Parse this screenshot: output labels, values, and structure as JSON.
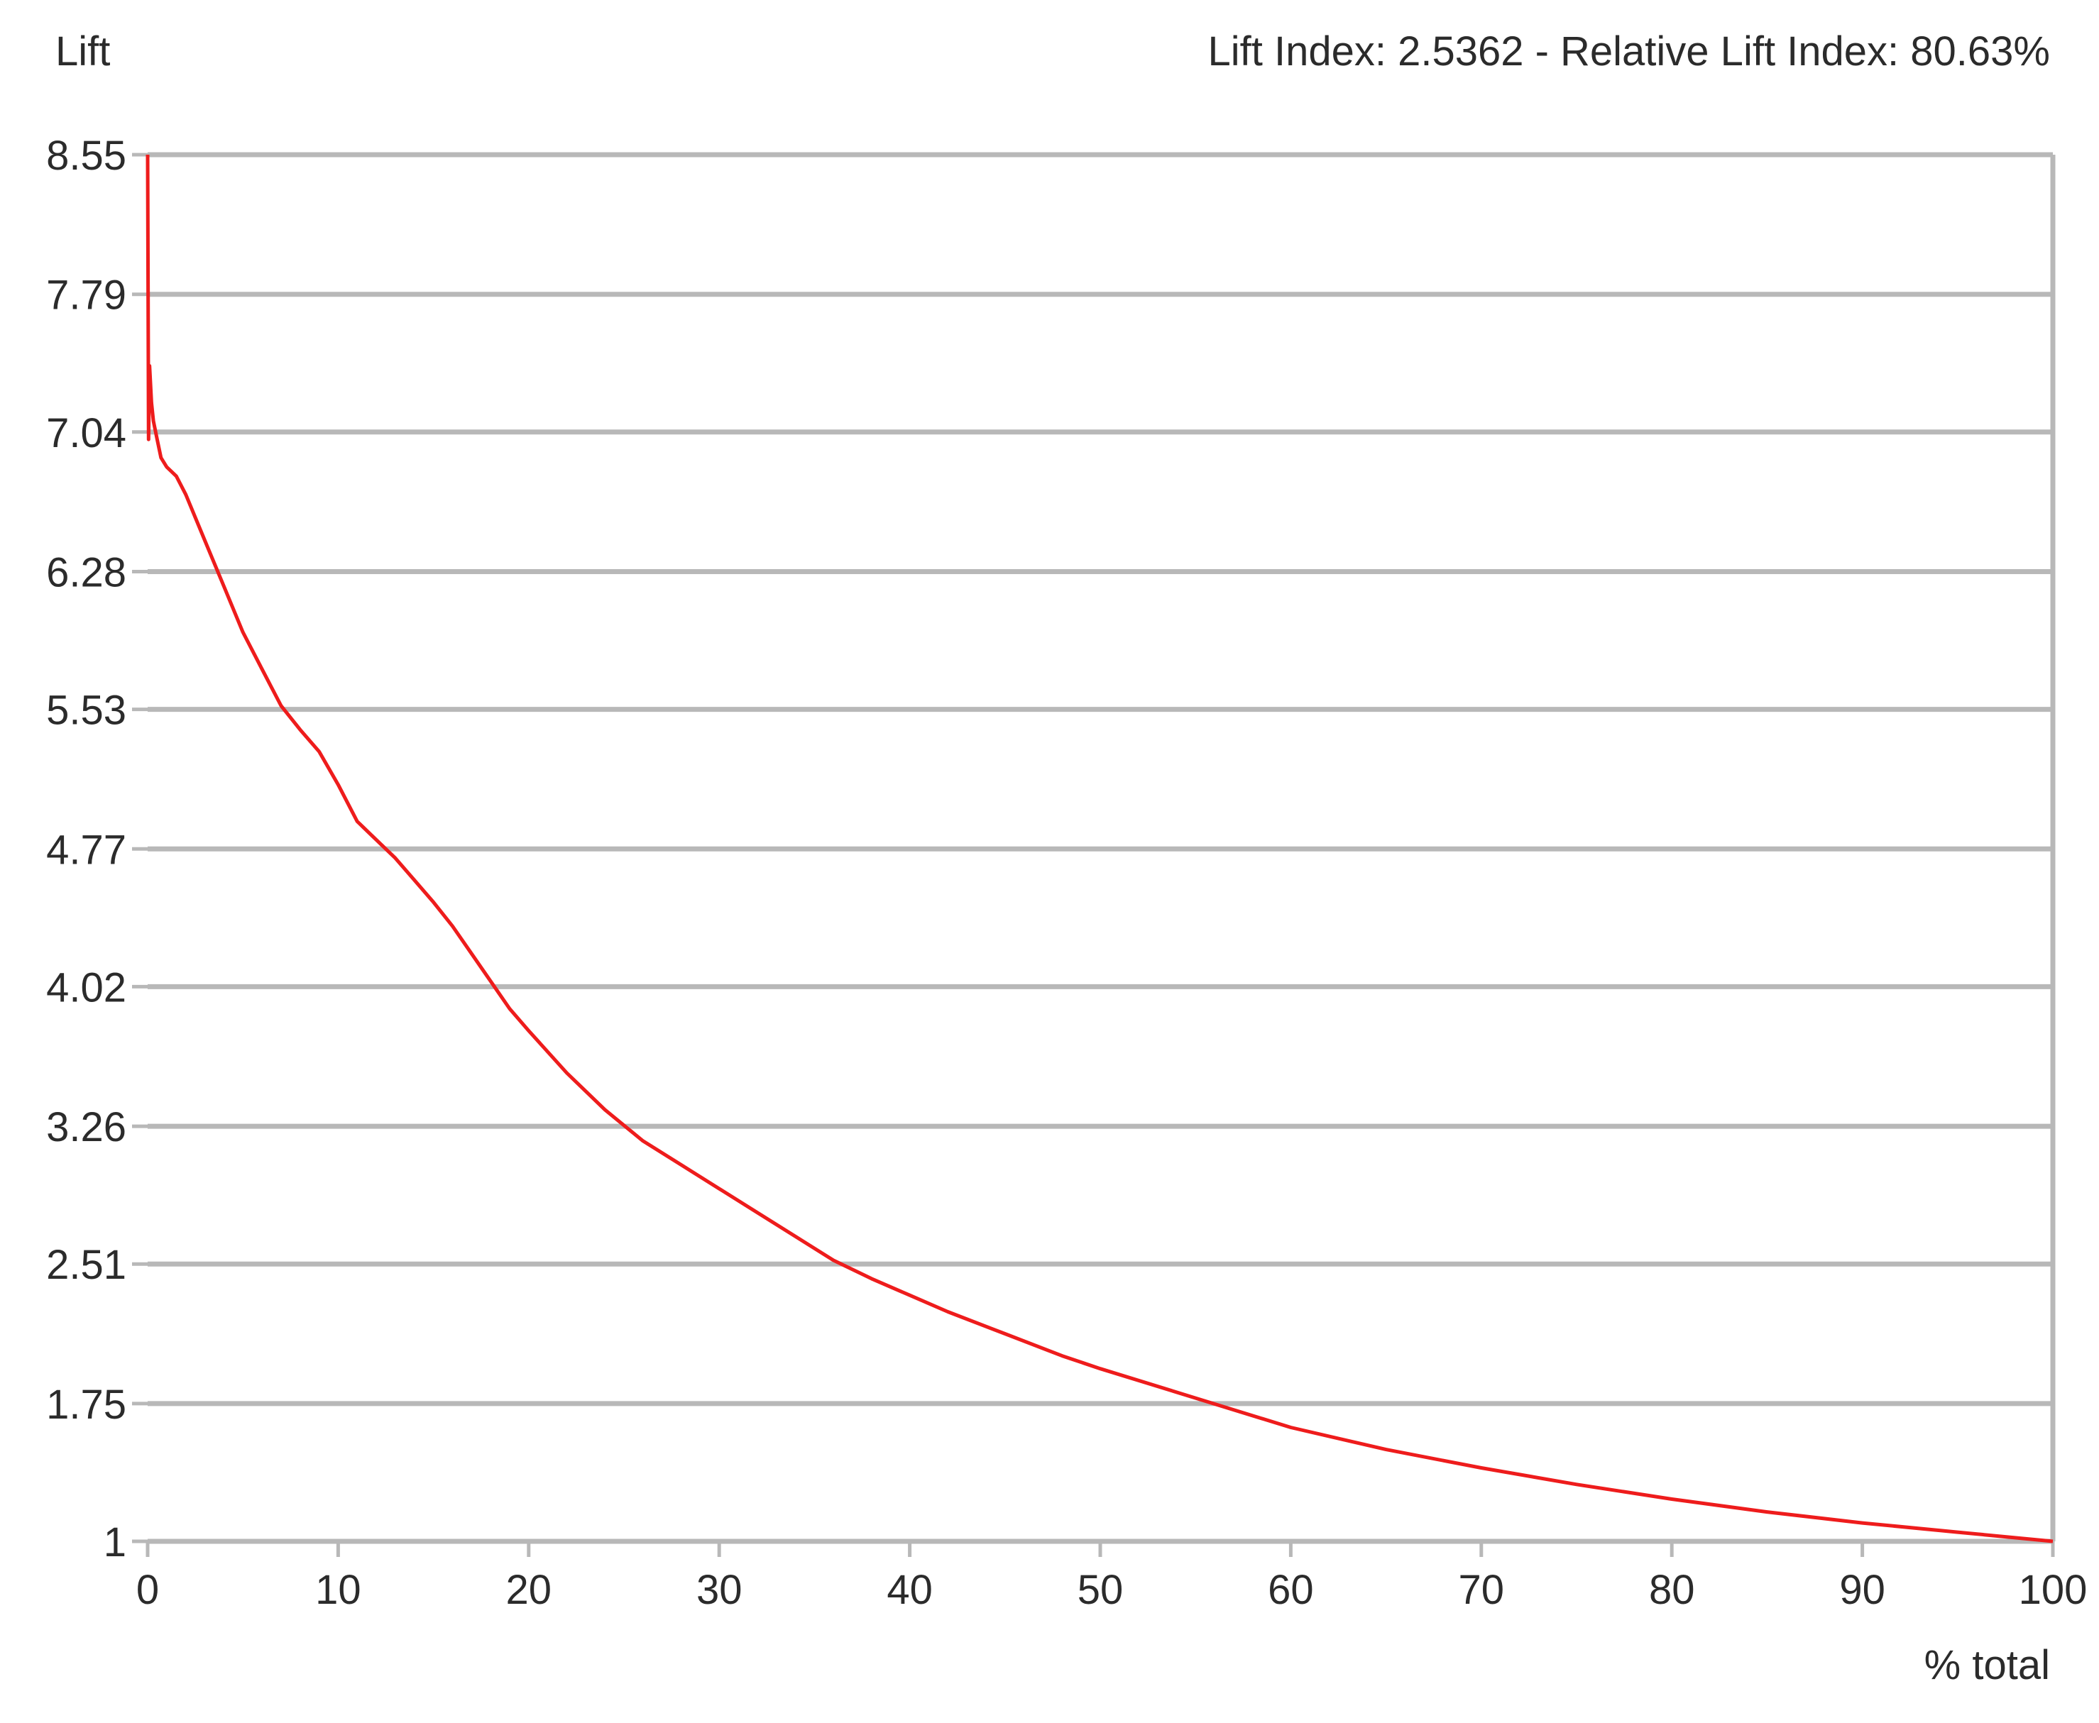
{
  "chart_data": {
    "type": "line",
    "ylabel": "Lift",
    "xlabel": "% total",
    "header_note": "Lift Index: 2.5362 - Relative Lift Index: 80.63%",
    "xlim": [
      0,
      100
    ],
    "ylim": [
      1,
      8.55
    ],
    "x_ticks": [
      "0",
      "10",
      "20",
      "30",
      "40",
      "50",
      "60",
      "70",
      "80",
      "90",
      "100"
    ],
    "y_ticks": [
      "8.55",
      "7.79",
      "7.04",
      "6.28",
      "5.53",
      "4.77",
      "4.02",
      "3.26",
      "2.51",
      "1.75",
      "1"
    ],
    "grid": true,
    "colors": {
      "series": "#ee1c1c",
      "grid": "#b8b8b8",
      "text": "#2b2b2b"
    },
    "series": [
      {
        "x": [
          0,
          0.05,
          0.1,
          0.2,
          0.3,
          0.5,
          0.7,
          1,
          1.5,
          2,
          3,
          4,
          5,
          6,
          7,
          8,
          9,
          10,
          11,
          12,
          13,
          14,
          15,
          16,
          17,
          18,
          19,
          20,
          22,
          24,
          26,
          28,
          30,
          32,
          34,
          36,
          38,
          40,
          42,
          45,
          48,
          50,
          55,
          60,
          65,
          70,
          75,
          80,
          85,
          90,
          95,
          100
        ],
        "y": [
          8.55,
          7.0,
          7.4,
          7.2,
          7.1,
          7.0,
          6.9,
          6.85,
          6.8,
          6.7,
          6.45,
          6.2,
          5.95,
          5.75,
          5.55,
          5.42,
          5.3,
          5.12,
          4.92,
          4.82,
          4.72,
          4.6,
          4.48,
          4.35,
          4.2,
          4.05,
          3.9,
          3.78,
          3.55,
          3.35,
          3.18,
          3.05,
          2.92,
          2.79,
          2.66,
          2.53,
          2.43,
          2.34,
          2.25,
          2.13,
          2.01,
          1.94,
          1.78,
          1.62,
          1.5,
          1.4,
          1.31,
          1.23,
          1.16,
          1.1,
          1.05,
          1.0
        ]
      }
    ]
  }
}
